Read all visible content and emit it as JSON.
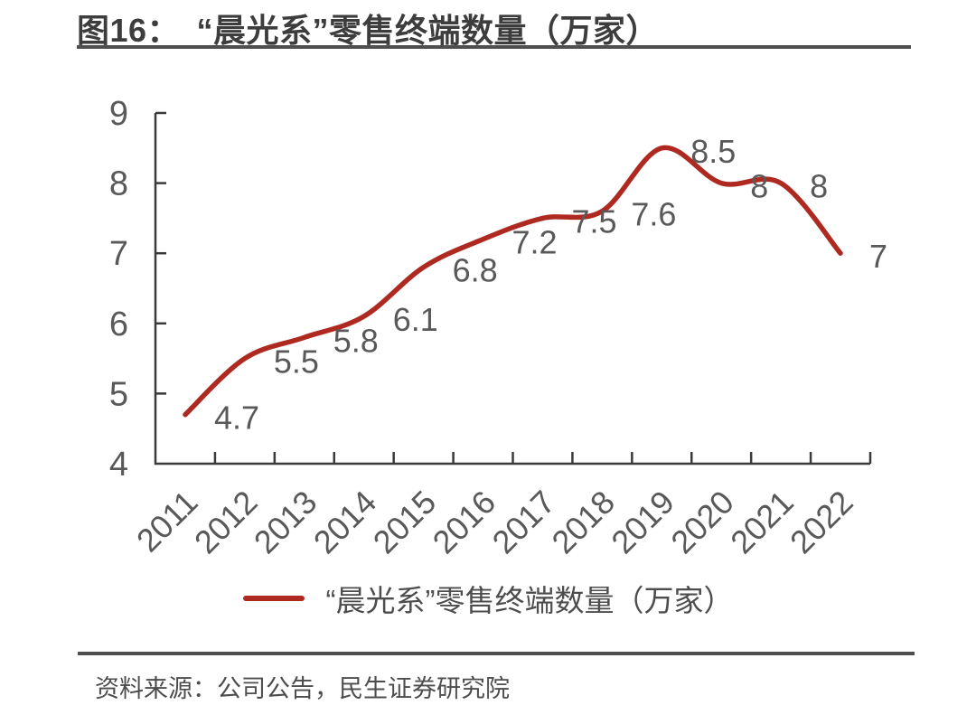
{
  "page": {
    "title": "图16：　“晨光系”零售终端数量（万家）",
    "source": "资料来源：公司公告，民生证券研究院"
  },
  "legend": {
    "label": "“晨光系”零售终端数量（万家）"
  },
  "colors": {
    "line": "#ae2a21",
    "axis": "#3a3a3a",
    "tick_label": "#595959",
    "data_label": "#595959",
    "title_text": "#3d3d3d",
    "rule": "#4f4f4f",
    "legend_text": "#4d4d4d",
    "source_text": "#4d4d4d",
    "background": "#ffffff"
  },
  "chart_data": {
    "type": "line",
    "title": "“晨光系”零售终端数量（万家）",
    "categories": [
      "2011",
      "2012",
      "2013",
      "2014",
      "2015",
      "2016",
      "2017",
      "2018",
      "2019",
      "2020",
      "2021",
      "2022"
    ],
    "series": [
      {
        "name": "“晨光系”零售终端数量（万家）",
        "values": [
          4.7,
          5.5,
          5.8,
          6.1,
          6.8,
          7.2,
          7.5,
          7.6,
          8.5,
          8,
          8,
          7
        ],
        "labels": [
          "4.7",
          "5.5",
          "5.8",
          "6.1",
          "6.8",
          "7.2",
          "7.5",
          "7.6",
          "8.5",
          "8",
          "8",
          "7"
        ]
      }
    ],
    "xlabel": "",
    "ylabel": "",
    "ylim": [
      4,
      9
    ],
    "yticks": [
      4,
      5,
      6,
      7,
      8,
      9
    ],
    "grid": false,
    "smooth": true,
    "data_labels": true,
    "legend_position": "bottom",
    "x_tick_rotation": -45
  }
}
